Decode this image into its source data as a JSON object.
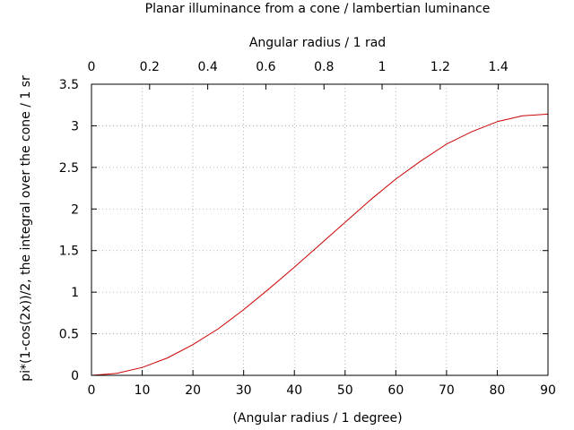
{
  "chart_data": {
    "type": "line",
    "title": "Planar illuminance from a cone / lambertian luminance",
    "x2label": "Angular radius / 1 rad",
    "xlabel": "(Angular radius / 1 degree)",
    "ylabel": "pi*(1-cos(2x))/2, the integral over the cone / 1 sr",
    "xlim": [
      0,
      90
    ],
    "ylim": [
      0,
      3.5
    ],
    "x2lim": [
      0,
      1.5708
    ],
    "grid": true,
    "xticks": [
      0,
      10,
      20,
      30,
      40,
      50,
      60,
      70,
      80,
      90
    ],
    "xtick_labels": [
      "0",
      "10",
      "20",
      "30",
      "40",
      "50",
      "60",
      "70",
      "80",
      "90"
    ],
    "yticks": [
      0,
      0.5,
      1,
      1.5,
      2,
      2.5,
      3,
      3.5
    ],
    "ytick_labels": [
      "0",
      "0.5",
      "1",
      "1.5",
      "2",
      "2.5",
      "3",
      "3.5"
    ],
    "x2ticks": [
      0,
      0.2,
      0.4,
      0.6,
      0.8,
      1,
      1.2,
      1.4
    ],
    "x2tick_labels": [
      "0",
      "0.2",
      "0.4",
      "0.6",
      "0.8",
      "1",
      "1.2",
      "1.4"
    ],
    "series": [
      {
        "color": "#cc0000",
        "x": [
          0,
          5,
          10,
          15,
          20,
          25,
          30,
          35,
          40,
          45,
          50,
          55,
          60,
          65,
          70,
          75,
          80,
          85,
          90
        ],
        "y": [
          0,
          0.024,
          0.095,
          0.21,
          0.37,
          0.56,
          0.79,
          1.04,
          1.3,
          1.57,
          1.84,
          2.11,
          2.36,
          2.58,
          2.78,
          2.93,
          3.05,
          3.12,
          3.14
        ]
      }
    ]
  }
}
